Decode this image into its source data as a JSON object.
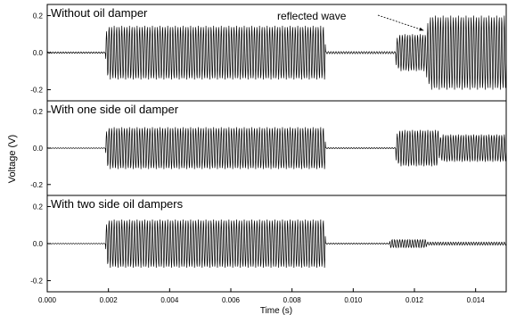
{
  "chart_data": {
    "type": "line",
    "xlabel": "Time (s)",
    "ylabel": "Voltage (V)",
    "xlim": [
      0.0,
      0.015
    ],
    "x_ticks": [
      0.0,
      0.002,
      0.004,
      0.006,
      0.008,
      0.01,
      0.012,
      0.014
    ],
    "x_tick_labels": [
      "0.000",
      "0.002",
      "0.004",
      "0.006",
      "0.008",
      "0.010",
      "0.012",
      "0.014"
    ],
    "grid": false,
    "legend": "none",
    "panels": [
      {
        "title": "Without oil damper",
        "ylim": [
          -0.26,
          0.26
        ],
        "y_ticks": [
          0.2,
          0.0,
          -0.2
        ],
        "y_tick_labels": [
          "0.2",
          "0.0",
          "-0.2"
        ],
        "annotation": {
          "text": "reflected wave",
          "arrow_target_time": 0.0123,
          "arrow_target_voltage": 0.12
        },
        "segments": [
          {
            "start": 0.0,
            "end": 0.0019,
            "amplitude": 0.004
          },
          {
            "start": 0.0019,
            "end": 0.0091,
            "amplitude": 0.145
          },
          {
            "start": 0.0091,
            "end": 0.0114,
            "amplitude": 0.006
          },
          {
            "start": 0.0114,
            "end": 0.0124,
            "amplitude": 0.1
          },
          {
            "start": 0.0124,
            "end": 0.015,
            "amplitude": 0.2
          }
        ]
      },
      {
        "title": "With one side oil damper",
        "ylim": [
          -0.26,
          0.26
        ],
        "y_ticks": [
          0.2,
          0.0,
          -0.2
        ],
        "y_tick_labels": [
          "0.2",
          "0.0",
          "-0.2"
        ],
        "segments": [
          {
            "start": 0.0,
            "end": 0.0019,
            "amplitude": 0.002
          },
          {
            "start": 0.0019,
            "end": 0.0091,
            "amplitude": 0.115
          },
          {
            "start": 0.0091,
            "end": 0.0114,
            "amplitude": 0.003
          },
          {
            "start": 0.0114,
            "end": 0.0128,
            "amplitude": 0.1
          },
          {
            "start": 0.0128,
            "end": 0.015,
            "amplitude": 0.075
          }
        ]
      },
      {
        "title": "With two side oil dampers",
        "ylim": [
          -0.26,
          0.26
        ],
        "y_ticks": [
          0.2,
          0.0,
          -0.2
        ],
        "y_tick_labels": [
          "0.2",
          "0.0",
          "-0.2"
        ],
        "segments": [
          {
            "start": 0.0,
            "end": 0.0019,
            "amplitude": 0.002
          },
          {
            "start": 0.0019,
            "end": 0.0091,
            "amplitude": 0.13
          },
          {
            "start": 0.0091,
            "end": 0.0112,
            "amplitude": 0.003
          },
          {
            "start": 0.0112,
            "end": 0.0124,
            "amplitude": 0.022
          },
          {
            "start": 0.0124,
            "end": 0.015,
            "amplitude": 0.008
          }
        ]
      }
    ]
  }
}
